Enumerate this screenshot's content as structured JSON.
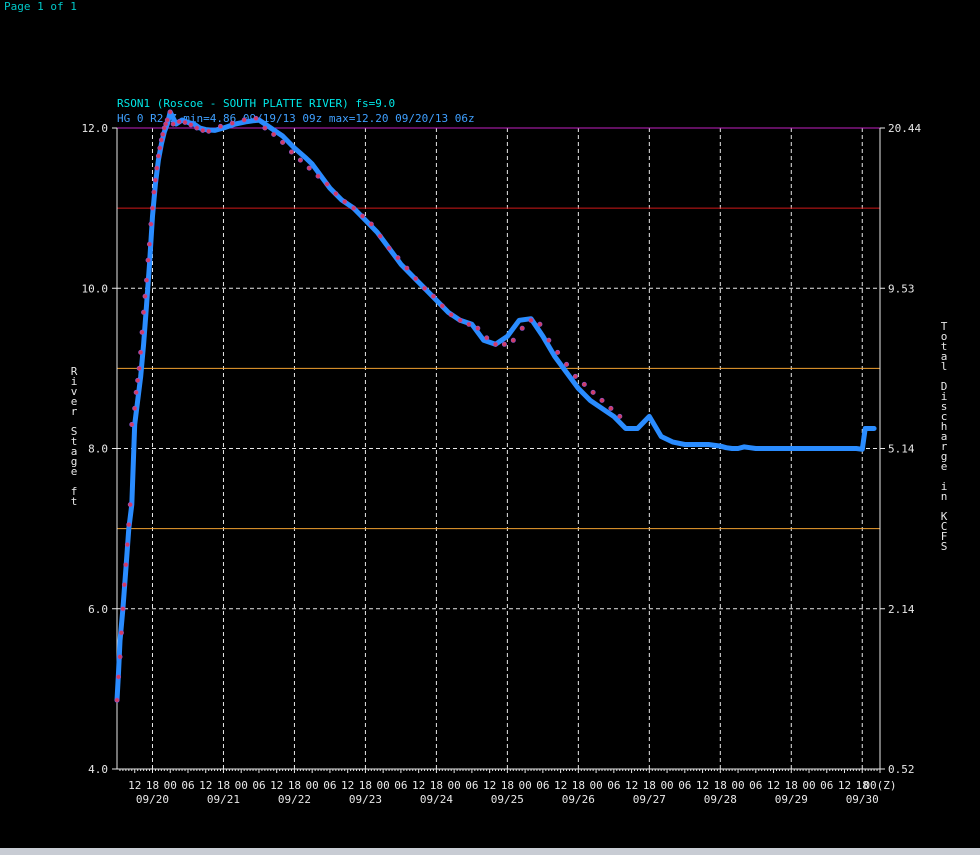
{
  "page_indicator": "Page 1 of 1",
  "colors": {
    "background": "#000000",
    "axis": "#e8e8e8",
    "grid": "#e8e8e8",
    "title": "#00e8e8",
    "subtitle": "#3fa0ff",
    "series_line": "#2a8cff",
    "series_points": "#d23c64",
    "top_border": "#c020c0",
    "flood_line": "#d01818",
    "action_line": "#f0a030"
  },
  "chart_data": {
    "type": "line",
    "title": "RSON1 (Roscoe - SOUTH PLATTE RIVER) fs=9.0",
    "subtitle": "HG 0 R2 Z min=4.86 09/19/13 09z max=12.20 09/20/13 06z",
    "ylabel": "River Stage ft",
    "y2label": "Total Discharge in KCFS",
    "ylim": [
      4.0,
      12.0
    ],
    "yticks": [
      4.0,
      6.0,
      8.0,
      10.0,
      12.0
    ],
    "ytick_labels": [
      "4.0",
      "6.0",
      "8.0",
      "10.0",
      "12.0"
    ],
    "y2tick_labels": [
      "0.52",
      "2.14",
      "5.14",
      "9.53",
      "20.44"
    ],
    "x_range_hours": [
      0,
      258
    ],
    "x_tick_hour_labels": [
      "12",
      "18",
      "00",
      "06",
      "12",
      "18",
      "00",
      "06",
      "12",
      "18",
      "00",
      "06",
      "12",
      "18",
      "00",
      "06",
      "12",
      "18",
      "00",
      "06",
      "12",
      "18",
      "00",
      "06",
      "12",
      "18",
      "00",
      "06",
      "12",
      "18",
      "00",
      "06",
      "12",
      "18",
      "00",
      "06",
      "12",
      "18",
      "00",
      "06",
      "12",
      "18",
      "00(Z)"
    ],
    "date_labels": [
      "09/20",
      "09/21",
      "09/22",
      "09/23",
      "09/24",
      "09/25",
      "09/26",
      "09/27",
      "09/28",
      "09/29",
      "09/30"
    ],
    "thresholds": [
      {
        "value": 11.0,
        "color": "#d01818"
      },
      {
        "value": 9.0,
        "color": "#f0a030"
      },
      {
        "value": 7.0,
        "color": "#f0a030"
      }
    ],
    "series": [
      {
        "x_hours": [
          0,
          0.5,
          1,
          2,
          3,
          4,
          5,
          6,
          7,
          8,
          9,
          10,
          11,
          12,
          13,
          14,
          15,
          16,
          17,
          18,
          20,
          22,
          24,
          26,
          28,
          30,
          33,
          36,
          40,
          44,
          48,
          52,
          56,
          60,
          64,
          66,
          68,
          70,
          72,
          76,
          80,
          84,
          88,
          92,
          96,
          100,
          104,
          108,
          112,
          116,
          120,
          124,
          128,
          132,
          136,
          140,
          144,
          148,
          152,
          156,
          160,
          164,
          168,
          172,
          176,
          180,
          184,
          188,
          192,
          196,
          200,
          204,
          206,
          208,
          210,
          212,
          214,
          216,
          220,
          224,
          228,
          232,
          236,
          240,
          244,
          248,
          250,
          252,
          253,
          254,
          255,
          256
        ],
        "values": [
          4.86,
          5.2,
          5.6,
          6.0,
          6.5,
          7.0,
          7.3,
          8.3,
          8.6,
          8.9,
          9.3,
          9.8,
          10.3,
          10.9,
          11.3,
          11.6,
          11.8,
          11.95,
          12.05,
          12.2,
          12.05,
          12.1,
          12.07,
          12.05,
          12.0,
          11.98,
          11.97,
          12.0,
          12.05,
          12.08,
          12.1,
          12.0,
          11.9,
          11.75,
          11.62,
          11.55,
          11.45,
          11.35,
          11.25,
          11.1,
          11.0,
          10.85,
          10.7,
          10.5,
          10.3,
          10.15,
          10.0,
          9.85,
          9.7,
          9.6,
          9.55,
          9.35,
          9.3,
          9.4,
          9.6,
          9.62,
          9.4,
          9.15,
          8.95,
          8.75,
          8.6,
          8.5,
          8.4,
          8.25,
          8.25,
          8.4,
          8.15,
          8.08,
          8.05,
          8.05,
          8.05,
          8.03,
          8.01,
          8.0,
          8.0,
          8.02,
          8.01,
          8.0,
          8.0,
          8.0,
          8.0,
          8.0,
          8.0,
          8.0,
          8.0,
          8.0,
          8.0,
          7.99,
          8.25,
          8.25,
          8.25,
          8.25
        ]
      }
    ],
    "observed_points": {
      "x_hours": [
        0,
        0.5,
        1,
        1.5,
        2,
        2.5,
        3,
        3.5,
        4,
        4.5,
        5,
        6,
        6.5,
        7,
        7.5,
        8,
        8.5,
        9,
        9.5,
        10,
        10.5,
        11,
        11.5,
        12,
        12.5,
        13,
        13.5,
        14,
        14.5,
        15,
        15.5,
        16,
        16.5,
        17,
        18,
        19,
        21,
        23,
        25,
        27,
        29,
        31,
        35,
        39,
        43,
        47,
        50,
        53,
        56,
        59,
        62,
        65,
        68,
        71,
        74,
        77,
        80,
        83,
        86,
        89,
        92,
        95,
        98,
        101,
        104,
        107,
        110,
        113,
        116,
        119,
        122,
        125,
        128,
        131,
        134,
        137,
        140,
        143,
        146,
        149,
        152,
        155,
        158,
        161,
        164,
        167,
        170
      ],
      "values": [
        4.86,
        5.15,
        5.4,
        5.7,
        6.0,
        6.3,
        6.55,
        6.8,
        7.05,
        7.3,
        8.3,
        8.5,
        8.7,
        8.85,
        9.0,
        9.2,
        9.45,
        9.7,
        9.9,
        10.1,
        10.35,
        10.55,
        10.8,
        11.0,
        11.2,
        11.35,
        11.5,
        11.65,
        11.75,
        11.85,
        11.92,
        12.0,
        12.05,
        12.1,
        12.2,
        12.05,
        12.08,
        12.07,
        12.04,
        12.0,
        11.97,
        11.96,
        12.02,
        12.06,
        12.1,
        12.12,
        12.0,
        11.92,
        11.82,
        11.7,
        11.6,
        11.5,
        11.4,
        11.3,
        11.18,
        11.08,
        11.0,
        10.9,
        10.8,
        10.65,
        10.5,
        10.38,
        10.25,
        10.12,
        10.0,
        9.9,
        9.78,
        9.67,
        9.6,
        9.55,
        9.5,
        9.38,
        9.3,
        9.3,
        9.35,
        9.5,
        9.6,
        9.55,
        9.35,
        9.2,
        9.05,
        8.9,
        8.8,
        8.7,
        8.6,
        8.5,
        8.4
      ]
    }
  }
}
